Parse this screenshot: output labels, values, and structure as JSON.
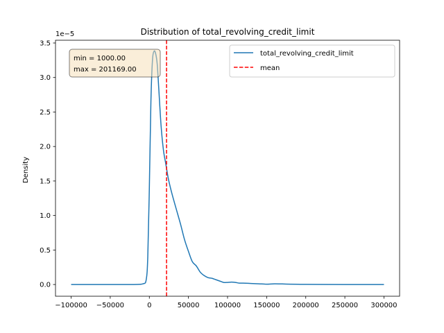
{
  "chart_data": {
    "type": "line",
    "title": "Distribution of total_revolving_credit_limit",
    "xlabel": "",
    "ylabel": "Density",
    "y_scale_label": "1e−5",
    "y_multiplier": 1e-05,
    "xlim": [
      -120000,
      320000
    ],
    "ylim": [
      -0.17,
      3.54
    ],
    "xticks": [
      -100000,
      -50000,
      0,
      50000,
      100000,
      150000,
      200000,
      250000,
      300000
    ],
    "xtick_labels": [
      "−100000",
      "−50000",
      "0",
      "50000",
      "100000",
      "150000",
      "200000",
      "250000",
      "300000"
    ],
    "yticks": [
      0.0,
      0.5,
      1.0,
      1.5,
      2.0,
      2.5,
      3.0,
      3.5
    ],
    "ytick_labels": [
      "0.0",
      "0.5",
      "1.0",
      "1.5",
      "2.0",
      "2.5",
      "3.0",
      "3.5"
    ],
    "legend_position": "top-right",
    "grid": false,
    "series": [
      {
        "name": "total_revolving_credit_limit",
        "color": "#1f77b4",
        "x": [
          -100000,
          -50000,
          -20000,
          -8000,
          -4000,
          -2000,
          0,
          2000,
          4000,
          6000,
          8000,
          10000,
          12000,
          15000,
          18000,
          21000,
          24000,
          27000,
          30000,
          35000,
          40000,
          45000,
          50000,
          55000,
          60000,
          65000,
          70000,
          75000,
          80000,
          85000,
          90000,
          95000,
          100000,
          105000,
          110000,
          115000,
          120000,
          130000,
          140000,
          150000,
          160000,
          170000,
          180000,
          190000,
          200000,
          220000,
          250000,
          300000
        ],
        "y": [
          0.0,
          0.0,
          0.0,
          0.01,
          0.07,
          0.4,
          1.4,
          2.65,
          3.25,
          3.38,
          3.35,
          3.2,
          2.85,
          2.3,
          1.95,
          1.75,
          1.55,
          1.4,
          1.27,
          1.07,
          0.87,
          0.65,
          0.48,
          0.33,
          0.27,
          0.18,
          0.13,
          0.1,
          0.09,
          0.07,
          0.05,
          0.03,
          0.03,
          0.035,
          0.03,
          0.02,
          0.02,
          0.015,
          0.01,
          0.005,
          0.01,
          0.008,
          0.005,
          0.003,
          0.002,
          0.001,
          0.0,
          0.0
        ]
      }
    ],
    "mean_line": {
      "name": "mean",
      "x": 22000,
      "color": "#ff0000"
    },
    "annotation": {
      "line1": "min = 1000.00",
      "line2": "max = 201169.00"
    }
  }
}
